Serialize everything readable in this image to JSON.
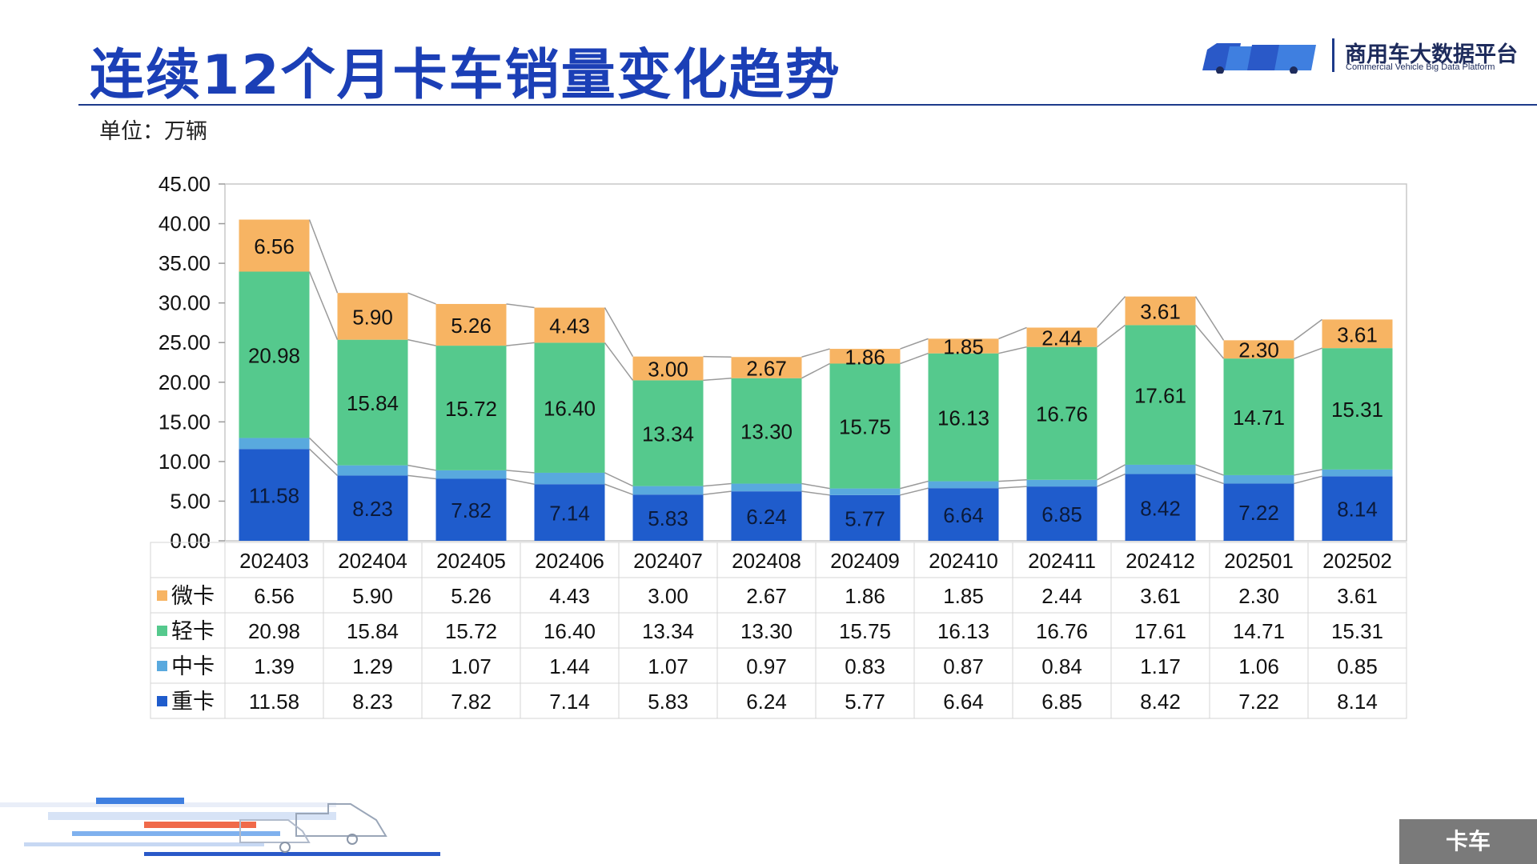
{
  "page": {
    "title": "连续12个月卡车销量变化趋势",
    "unit_label": "单位：万辆",
    "logo_name": "商用车大数据平台",
    "logo_subtitle": "Commercial Vehicle Big Data Platform",
    "footer_tag": "卡车"
  },
  "chart_data": {
    "type": "bar",
    "stacked": true,
    "categories": [
      "202403",
      "202404",
      "202405",
      "202406",
      "202407",
      "202408",
      "202409",
      "202410",
      "202411",
      "202412",
      "202501",
      "202502"
    ],
    "series": [
      {
        "name": "重卡",
        "color": "#1f5ccc",
        "values": [
          11.58,
          8.23,
          7.82,
          7.14,
          5.83,
          6.24,
          5.77,
          6.64,
          6.85,
          8.42,
          7.22,
          8.14
        ],
        "display": [
          "11.58",
          "8.23",
          "7.82",
          "7.14",
          "5.83",
          "6.24",
          "5.77",
          "6.64",
          "6.85",
          "8.42",
          "7.22",
          "8.14"
        ],
        "label_in_bar": true
      },
      {
        "name": "中卡",
        "color": "#59a9de",
        "values": [
          1.39,
          1.29,
          1.07,
          1.44,
          1.07,
          0.97,
          0.83,
          0.87,
          0.84,
          1.17,
          1.06,
          0.85
        ],
        "display": [
          "1.39",
          "1.29",
          "1.07",
          "1.44",
          "1.07",
          "0.97",
          "0.83",
          "0.87",
          "0.84",
          "1.17",
          "1.06",
          "0.85"
        ],
        "label_in_bar": false
      },
      {
        "name": "轻卡",
        "color": "#55c98d",
        "values": [
          20.98,
          15.84,
          15.72,
          16.4,
          13.34,
          13.3,
          15.75,
          16.13,
          16.76,
          17.61,
          14.71,
          15.31
        ],
        "display": [
          "20.98",
          "15.84",
          "15.72",
          "16.40",
          "13.34",
          "13.30",
          "15.75",
          "16.13",
          "16.76",
          "17.61",
          "14.71",
          "15.31"
        ],
        "label_in_bar": true
      },
      {
        "name": "微卡",
        "color": "#f7b463",
        "values": [
          6.56,
          5.9,
          5.26,
          4.43,
          3.0,
          2.67,
          1.86,
          1.85,
          2.44,
          3.61,
          2.3,
          3.61
        ],
        "display": [
          "6.56",
          "5.90",
          "5.26",
          "4.43",
          "3.00",
          "2.67",
          "1.86",
          "1.85",
          "2.44",
          "3.61",
          "2.30",
          "3.61"
        ],
        "label_in_bar": true
      }
    ],
    "table_order": [
      "微卡",
      "轻卡",
      "中卡",
      "重卡"
    ],
    "yticks": [
      "0.00",
      "5.00",
      "10.00",
      "15.00",
      "20.00",
      "25.00",
      "30.00",
      "35.00",
      "40.00",
      "45.00"
    ],
    "ylim": [
      0,
      45
    ],
    "series_lines": true,
    "grid": false,
    "legend": "data-table"
  }
}
